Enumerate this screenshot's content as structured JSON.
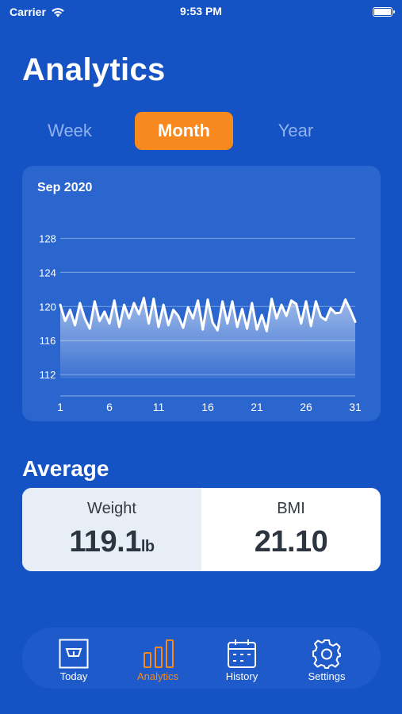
{
  "status_bar": {
    "carrier": "Carrier",
    "time": "9:53 PM"
  },
  "page": {
    "title": "Analytics"
  },
  "segments": {
    "week": "Week",
    "month": "Month",
    "year": "Year",
    "selected": "Month"
  },
  "chart_data": {
    "type": "area",
    "title": "Sep 2020",
    "xlabel": "",
    "ylabel": "",
    "x_ticks": [
      "1",
      "6",
      "11",
      "16",
      "21",
      "26",
      "31"
    ],
    "y_ticks": [
      "128",
      "124",
      "120",
      "116",
      "112"
    ],
    "xlim": [
      1,
      31
    ],
    "ylim": [
      109.5,
      130
    ],
    "grid": true,
    "series": [
      {
        "values": [
          [
            1,
            120.2
          ],
          [
            1.5,
            118.3
          ],
          [
            2,
            119.6
          ],
          [
            2.5,
            117.8
          ],
          [
            3,
            120.4
          ],
          [
            3.5,
            118.6
          ],
          [
            4,
            117.4
          ],
          [
            4.5,
            120.6
          ],
          [
            5,
            118.3
          ],
          [
            5.5,
            119.4
          ],
          [
            6,
            118.0
          ],
          [
            6.5,
            120.7
          ],
          [
            7,
            117.6
          ],
          [
            7.5,
            120.2
          ],
          [
            8,
            118.6
          ],
          [
            8.5,
            120.4
          ],
          [
            9,
            119.1
          ],
          [
            9.5,
            121.0
          ],
          [
            10,
            118.0
          ],
          [
            10.5,
            120.9
          ],
          [
            11,
            117.6
          ],
          [
            11.5,
            120.2
          ],
          [
            12,
            117.8
          ],
          [
            12.5,
            119.6
          ],
          [
            13,
            118.9
          ],
          [
            13.5,
            117.5
          ],
          [
            14,
            119.9
          ],
          [
            14.5,
            118.6
          ],
          [
            15,
            120.7
          ],
          [
            15.5,
            117.3
          ],
          [
            16,
            120.8
          ],
          [
            16.5,
            118.1
          ],
          [
            17,
            117.2
          ],
          [
            17.5,
            120.6
          ],
          [
            18,
            118.0
          ],
          [
            18.5,
            120.6
          ],
          [
            19,
            117.6
          ],
          [
            19.5,
            119.7
          ],
          [
            20,
            117.4
          ],
          [
            20.5,
            120.4
          ],
          [
            21,
            117.3
          ],
          [
            21.5,
            119.0
          ],
          [
            22,
            117.1
          ],
          [
            22.5,
            120.9
          ],
          [
            23,
            118.6
          ],
          [
            23.5,
            120.2
          ],
          [
            24,
            118.9
          ],
          [
            24.5,
            120.7
          ],
          [
            25,
            120.3
          ],
          [
            25.5,
            118.0
          ],
          [
            26,
            120.6
          ],
          [
            26.5,
            117.7
          ],
          [
            27,
            120.6
          ],
          [
            27.5,
            118.8
          ],
          [
            28,
            118.4
          ],
          [
            28.5,
            119.8
          ],
          [
            29,
            119.2
          ],
          [
            29.5,
            119.3
          ],
          [
            30,
            120.8
          ],
          [
            30.5,
            119.6
          ],
          [
            31,
            118.2
          ]
        ]
      }
    ],
    "colors": {
      "line": "#FFFFFF",
      "fill_top": "#FFFFFF",
      "grid": "#6E99DE"
    }
  },
  "average": {
    "title": "Average",
    "weight_label": "Weight",
    "weight_value": "119.1",
    "weight_unit": "lb",
    "bmi_label": "BMI",
    "bmi_value": "21.10"
  },
  "tab_bar": {
    "items": [
      {
        "label": "Today",
        "icon": "scale-icon"
      },
      {
        "label": "Analytics",
        "icon": "bar-chart-icon"
      },
      {
        "label": "History",
        "icon": "calendar-icon"
      },
      {
        "label": "Settings",
        "icon": "gear-icon"
      }
    ],
    "active": "Analytics"
  },
  "colors": {
    "background": "#1553C4",
    "accent": "#F7891F",
    "card": "#2B66CE",
    "tab_bar": "#1E5ACA",
    "text_dark": "#2D3540"
  }
}
